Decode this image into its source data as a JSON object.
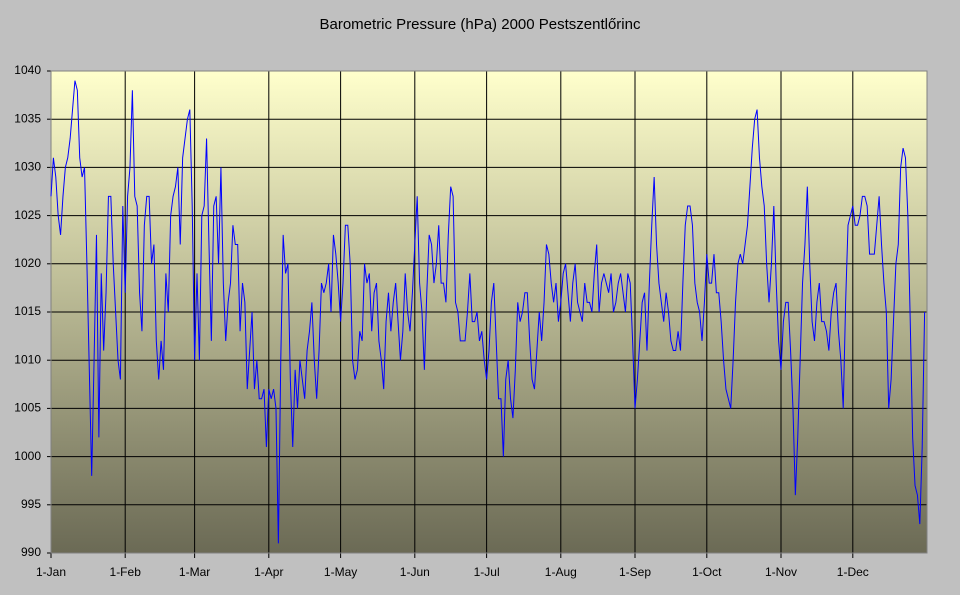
{
  "chart_data": {
    "type": "line",
    "title": "Barometric Pressure (hPa) 2000 Pestszentlőrinc",
    "color": "#0000ff",
    "grid": true,
    "ylim": [
      990,
      1040
    ],
    "yticks": [
      990,
      995,
      1000,
      1005,
      1010,
      1015,
      1020,
      1025,
      1030,
      1035,
      1040
    ],
    "xlim": [
      0,
      366
    ],
    "xticks": [
      {
        "value": 0,
        "label": "1-Jan"
      },
      {
        "value": 31,
        "label": "1-Feb"
      },
      {
        "value": 60,
        "label": "1-Mar"
      },
      {
        "value": 91,
        "label": "1-Apr"
      },
      {
        "value": 121,
        "label": "1-May"
      },
      {
        "value": 152,
        "label": "1-Jun"
      },
      {
        "value": 182,
        "label": "1-Jul"
      },
      {
        "value": 213,
        "label": "1-Aug"
      },
      {
        "value": 244,
        "label": "1-Sep"
      },
      {
        "value": 274,
        "label": "1-Oct"
      },
      {
        "value": 305,
        "label": "1-Nov"
      },
      {
        "value": 335,
        "label": "1-Dec"
      }
    ],
    "x": [
      0,
      1,
      2,
      3,
      4,
      5,
      6,
      7,
      8,
      9,
      10,
      11,
      12,
      13,
      14,
      15,
      16,
      17,
      18,
      19,
      20,
      21,
      22,
      23,
      24,
      25,
      26,
      27,
      28,
      29,
      30,
      31,
      32,
      33,
      34,
      35,
      36,
      37,
      38,
      39,
      40,
      41,
      42,
      43,
      44,
      45,
      46,
      47,
      48,
      49,
      50,
      51,
      52,
      53,
      54,
      55,
      56,
      57,
      58,
      59,
      60,
      61,
      62,
      63,
      64,
      65,
      66,
      67,
      68,
      69,
      70,
      71,
      72,
      73,
      74,
      75,
      76,
      77,
      78,
      79,
      80,
      81,
      82,
      83,
      84,
      85,
      86,
      87,
      88,
      89,
      90,
      91,
      92,
      93,
      94,
      95,
      96,
      97,
      98,
      99,
      100,
      101,
      102,
      103,
      104,
      105,
      106,
      107,
      108,
      109,
      110,
      111,
      112,
      113,
      114,
      115,
      116,
      117,
      118,
      119,
      120,
      121,
      122,
      123,
      124,
      125,
      126,
      127,
      128,
      129,
      130,
      131,
      132,
      133,
      134,
      135,
      136,
      137,
      138,
      139,
      140,
      141,
      142,
      143,
      144,
      145,
      146,
      147,
      148,
      149,
      150,
      151,
      152,
      153,
      154,
      155,
      156,
      157,
      158,
      159,
      160,
      161,
      162,
      163,
      164,
      165,
      166,
      167,
      168,
      169,
      170,
      171,
      172,
      173,
      174,
      175,
      176,
      177,
      178,
      179,
      180,
      181,
      182,
      183,
      184,
      185,
      186,
      187,
      188,
      189,
      190,
      191,
      192,
      193,
      194,
      195,
      196,
      197,
      198,
      199,
      200,
      201,
      202,
      203,
      204,
      205,
      206,
      207,
      208,
      209,
      210,
      211,
      212,
      213,
      214,
      215,
      216,
      217,
      218,
      219,
      220,
      221,
      222,
      223,
      224,
      225,
      226,
      227,
      228,
      229,
      230,
      231,
      232,
      233,
      234,
      235,
      236,
      237,
      238,
      239,
      240,
      241,
      242,
      243,
      244,
      245,
      246,
      247,
      248,
      249,
      250,
      251,
      252,
      253,
      254,
      255,
      256,
      257,
      258,
      259,
      260,
      261,
      262,
      263,
      264,
      265,
      266,
      267,
      268,
      269,
      270,
      271,
      272,
      273,
      274,
      275,
      276,
      277,
      278,
      279,
      280,
      281,
      282,
      283,
      284,
      285,
      286,
      287,
      288,
      289,
      290,
      291,
      292,
      293,
      294,
      295,
      296,
      297,
      298,
      299,
      300,
      301,
      302,
      303,
      304,
      305,
      306,
      307,
      308,
      309,
      310,
      311,
      312,
      313,
      314,
      315,
      316,
      317,
      318,
      319,
      320,
      321,
      322,
      323,
      324,
      325,
      326,
      327,
      328,
      329,
      330,
      331,
      332,
      333,
      334,
      335,
      336,
      337,
      338,
      339,
      340,
      341,
      342,
      343,
      344,
      345,
      346,
      347,
      348,
      349,
      350,
      351,
      352,
      353,
      354,
      355,
      356,
      357,
      358,
      359,
      360,
      361,
      362,
      363,
      364,
      365
    ],
    "values": [
      1027,
      1031,
      1029,
      1025,
      1023,
      1027,
      1030,
      1031,
      1033,
      1036,
      1039,
      1038,
      1031,
      1029,
      1030,
      1020,
      1009,
      998,
      1010,
      1023,
      1002,
      1019,
      1011,
      1017,
      1027,
      1027,
      1020,
      1015,
      1010,
      1008,
      1026,
      1017,
      1027,
      1030,
      1038,
      1027,
      1026,
      1017,
      1013,
      1024,
      1027,
      1027,
      1020,
      1022,
      1012,
      1008,
      1012,
      1009,
      1019,
      1015,
      1025,
      1027,
      1028,
      1030,
      1022,
      1031,
      1033,
      1035,
      1036,
      1026,
      1010,
      1019,
      1010,
      1025,
      1026,
      1033,
      1022,
      1012,
      1026,
      1027,
      1020,
      1030,
      1018,
      1012,
      1016,
      1018,
      1024,
      1022,
      1022,
      1013,
      1018,
      1016,
      1007,
      1011,
      1015,
      1007,
      1010,
      1006,
      1006,
      1007,
      1001,
      1007,
      1006,
      1007,
      1005,
      991,
      1010,
      1023,
      1019,
      1020,
      1008,
      1001,
      1009,
      1005,
      1010,
      1008,
      1006,
      1011,
      1013,
      1016,
      1010,
      1006,
      1011,
      1018,
      1017,
      1018,
      1020,
      1015,
      1023,
      1021,
      1018,
      1014,
      1018,
      1024,
      1024,
      1020,
      1010,
      1008,
      1009,
      1013,
      1012,
      1020,
      1018,
      1019,
      1013,
      1017,
      1018,
      1012,
      1010,
      1007,
      1014,
      1017,
      1013,
      1016,
      1018,
      1014,
      1010,
      1013,
      1019,
      1015,
      1013,
      1017,
      1022,
      1027,
      1018,
      1015,
      1009,
      1017,
      1023,
      1022,
      1018,
      1020,
      1024,
      1018,
      1018,
      1016,
      1023,
      1028,
      1027,
      1016,
      1015,
      1012,
      1012,
      1012,
      1015,
      1019,
      1014,
      1014,
      1015,
      1012,
      1013,
      1010,
      1008,
      1011,
      1016,
      1018,
      1012,
      1006,
      1006,
      1000,
      1008,
      1010,
      1006,
      1004,
      1009,
      1016,
      1014,
      1015,
      1017,
      1017,
      1012,
      1008,
      1007,
      1011,
      1015,
      1012,
      1016,
      1022,
      1021,
      1018,
      1016,
      1018,
      1014,
      1016,
      1019,
      1020,
      1017,
      1014,
      1018,
      1020,
      1016,
      1015,
      1014,
      1018,
      1016,
      1016,
      1015,
      1019,
      1022,
      1015,
      1018,
      1019,
      1018,
      1017,
      1019,
      1015,
      1016,
      1018,
      1019,
      1017,
      1015,
      1019,
      1018,
      1012,
      1005,
      1008,
      1012,
      1016,
      1017,
      1011,
      1018,
      1024,
      1029,
      1022,
      1018,
      1016,
      1014,
      1017,
      1015,
      1012,
      1011,
      1011,
      1013,
      1011,
      1018,
      1024,
      1026,
      1026,
      1024,
      1018,
      1016,
      1015,
      1012,
      1016,
      1021,
      1018,
      1018,
      1021,
      1017,
      1017,
      1014,
      1010,
      1007,
      1006,
      1005,
      1010,
      1016,
      1020,
      1021,
      1020,
      1022,
      1024,
      1028,
      1032,
      1035,
      1036,
      1031,
      1028,
      1026,
      1020,
      1016,
      1020,
      1026,
      1018,
      1012,
      1009,
      1014,
      1016,
      1016,
      1011,
      1005,
      996,
      1002,
      1010,
      1018,
      1022,
      1028,
      1020,
      1014,
      1012,
      1016,
      1018,
      1014,
      1014,
      1013,
      1011,
      1015,
      1017,
      1018,
      1013,
      1010,
      1005,
      1016,
      1024,
      1025,
      1026,
      1024,
      1024,
      1025,
      1027,
      1027,
      1026,
      1021,
      1021,
      1021,
      1024,
      1027,
      1022,
      1018,
      1015,
      1005,
      1008,
      1014,
      1020,
      1022,
      1030,
      1032,
      1031,
      1025,
      1014,
      1002,
      997,
      996,
      993,
      1001,
      1015
    ]
  }
}
